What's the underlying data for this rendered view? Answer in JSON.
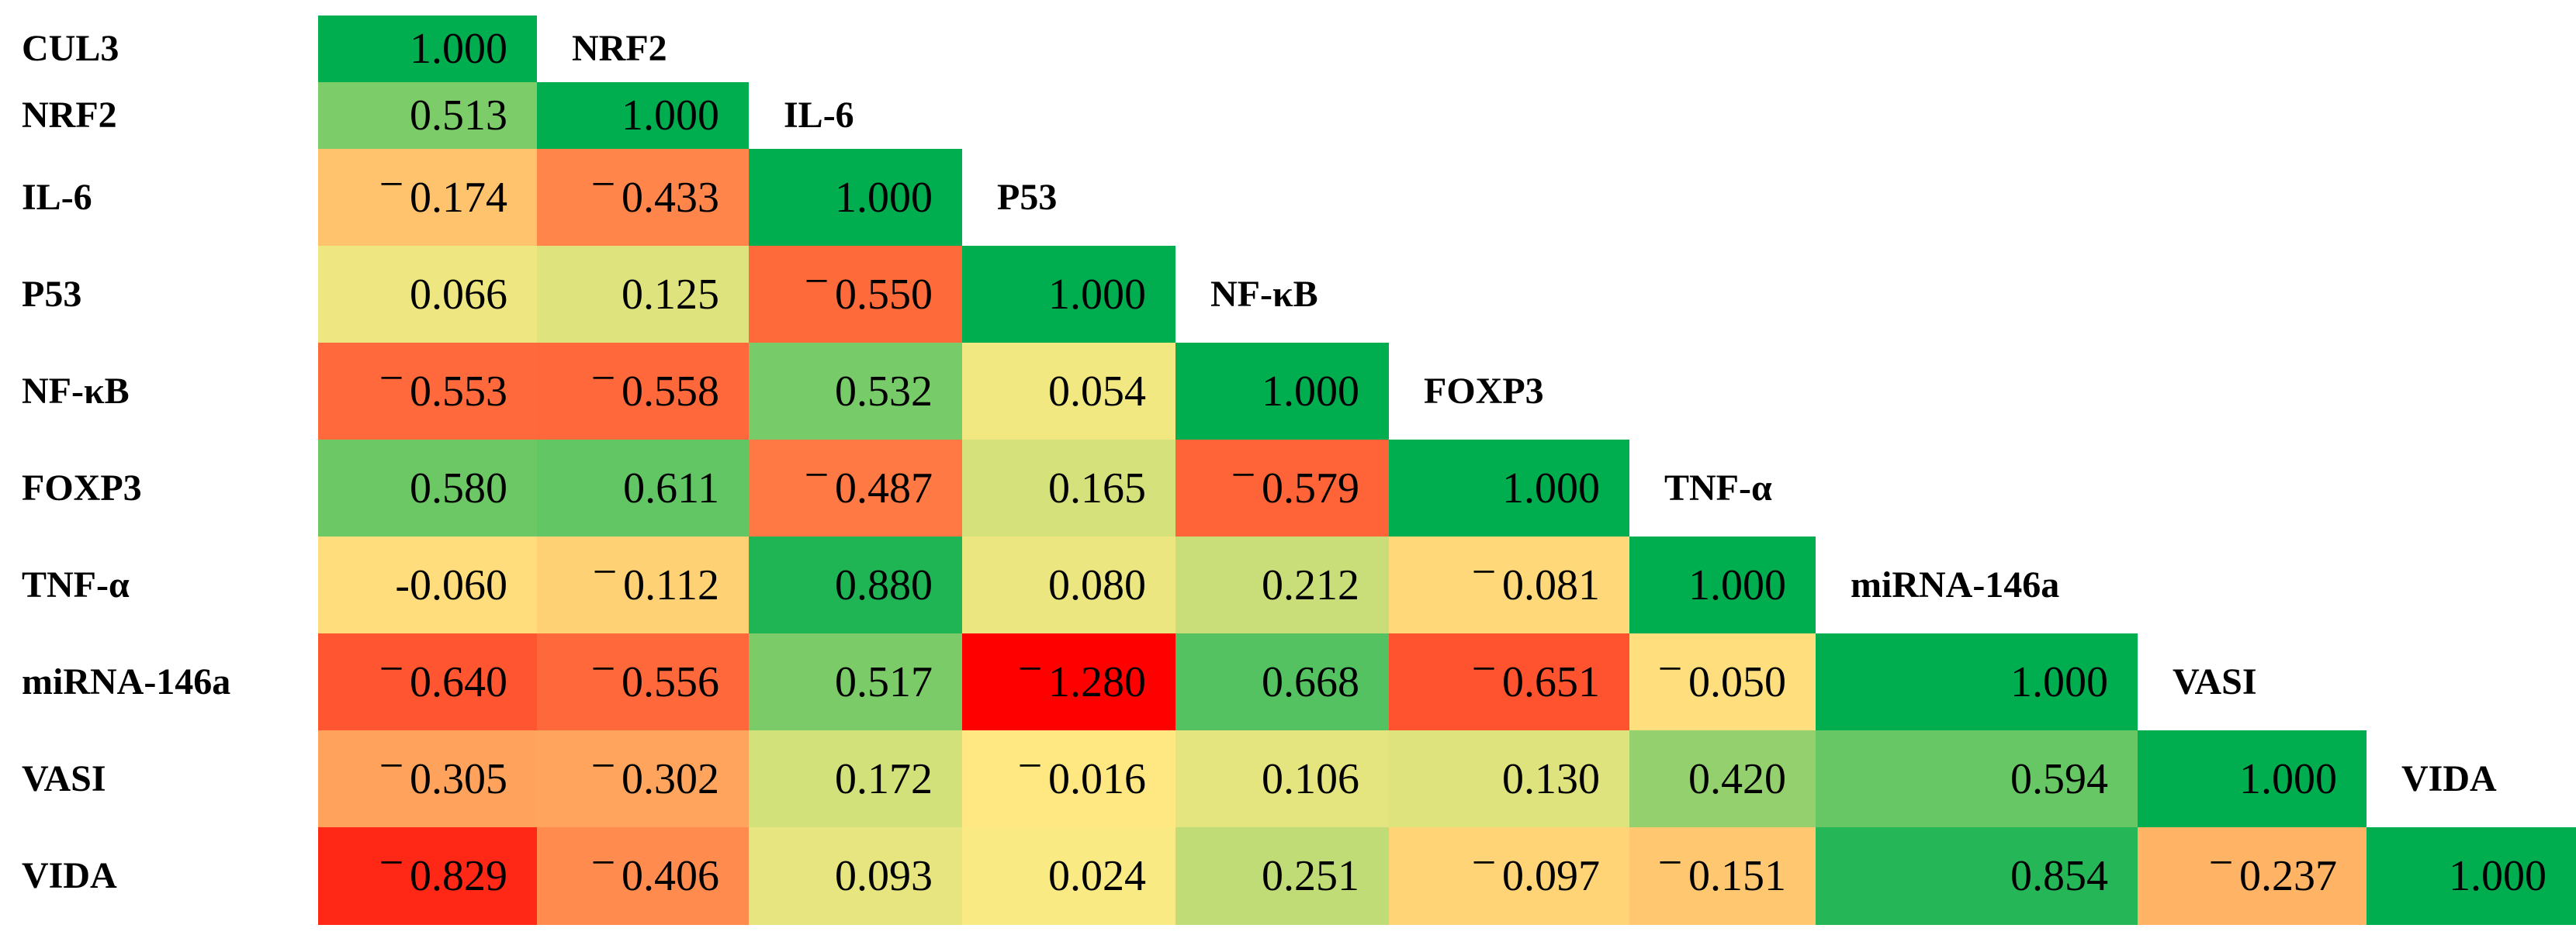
{
  "chart_data": {
    "type": "heatmap",
    "subtype": "correlation-matrix-lower-triangular",
    "title": "",
    "legend": "none",
    "background": "#FFFFFF",
    "value_text_color": "#000000",
    "variables": [
      "CUL3",
      "NRF2",
      "IL-6",
      "P53",
      "NF-κB",
      "FOXP3",
      "TNF-α",
      "miRNA-146a",
      "VASI",
      "VIDA"
    ],
    "rows": [
      {
        "label": "CUL3",
        "values": [
          "1.000"
        ]
      },
      {
        "label": "NRF2",
        "values": [
          "0.513",
          "1.000"
        ]
      },
      {
        "label": "IL-6",
        "values": [
          "−0.174",
          "−0.433",
          "1.000"
        ]
      },
      {
        "label": "P53",
        "values": [
          "0.066",
          "0.125",
          "−0.550",
          "1.000"
        ]
      },
      {
        "label": "NF-κB",
        "values": [
          "−0.553",
          "−0.558",
          "0.532",
          "0.054",
          "1.000"
        ]
      },
      {
        "label": "FOXP3",
        "values": [
          "0.580",
          "0.611",
          "−0.487",
          "0.165",
          "−0.579",
          "1.000"
        ]
      },
      {
        "label": "TNF-α",
        "values": [
          "-0.060",
          "−0.112",
          "0.880",
          "0.080",
          "0.212",
          "−0.081",
          "1.000"
        ]
      },
      {
        "label": "miRNA-146a",
        "values": [
          "−0.640",
          "−0.556",
          "0.517",
          "−1.280",
          "0.668",
          "−0.651",
          "−0.050",
          "1.000"
        ]
      },
      {
        "label": "VASI",
        "values": [
          "−0.305",
          "−0.302",
          "0.172",
          "−0.016",
          "0.106",
          "0.130",
          "0.420",
          "0.594",
          "1.000"
        ]
      },
      {
        "label": "VIDA",
        "values": [
          "−0.829",
          "−0.406",
          "0.093",
          "0.024",
          "0.251",
          "−0.097",
          "−0.151",
          "0.854",
          "−0.237",
          "1.000"
        ]
      }
    ],
    "matrix": [
      [
        1.0
      ],
      [
        0.513,
        1.0
      ],
      [
        -0.174,
        -0.433,
        1.0
      ],
      [
        0.066,
        0.125,
        -0.55,
        1.0
      ],
      [
        -0.553,
        -0.558,
        0.532,
        0.054,
        1.0
      ],
      [
        0.58,
        0.611,
        -0.487,
        0.165,
        -0.579,
        1.0
      ],
      [
        -0.06,
        -0.112,
        0.88,
        0.08,
        0.212,
        -0.081,
        1.0
      ],
      [
        -0.64,
        -0.556,
        0.517,
        -1.28,
        0.668,
        -0.651,
        -0.05,
        1.0
      ],
      [
        -0.305,
        -0.302,
        0.172,
        -0.016,
        0.106,
        0.13,
        0.42,
        0.594,
        1.0
      ],
      [
        -0.829,
        -0.406,
        0.093,
        0.024,
        0.251,
        -0.097,
        -0.151,
        0.854,
        -0.237,
        1.0
      ]
    ],
    "colorscale": {
      "min": -1,
      "mid": 0,
      "max": 1,
      "clamp": true,
      "min_color": "#FF0000",
      "mid_color": "#FFEB84",
      "max_color": "#00AE4F"
    }
  }
}
